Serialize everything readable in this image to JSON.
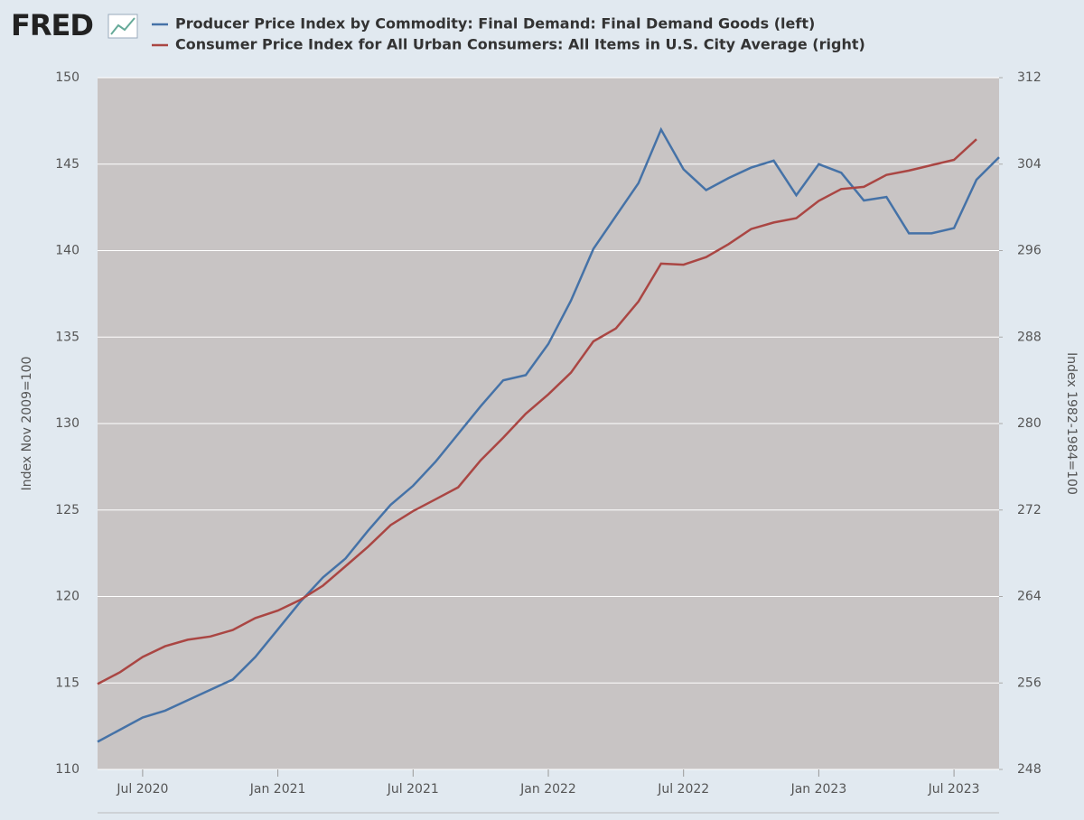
{
  "logo": "FRED",
  "chart_data": {
    "type": "line",
    "x": [
      "2020-05",
      "2020-06",
      "2020-07",
      "2020-08",
      "2020-09",
      "2020-10",
      "2020-11",
      "2020-12",
      "2021-01",
      "2021-02",
      "2021-03",
      "2021-04",
      "2021-05",
      "2021-06",
      "2021-07",
      "2021-08",
      "2021-09",
      "2021-10",
      "2021-11",
      "2021-12",
      "2022-01",
      "2022-02",
      "2022-03",
      "2022-04",
      "2022-05",
      "2022-06",
      "2022-07",
      "2022-08",
      "2022-09",
      "2022-10",
      "2022-11",
      "2022-12",
      "2023-01",
      "2023-02",
      "2023-03",
      "2023-04",
      "2023-05",
      "2023-06",
      "2023-07",
      "2023-08",
      "2023-09"
    ],
    "series": [
      {
        "name": "Producer Price Index by Commodity: Final Demand: Final Demand Goods (left)",
        "color": "#4572a7",
        "axis": "y",
        "values": [
          111.6,
          112.3,
          113.0,
          113.4,
          114.0,
          114.6,
          115.2,
          116.5,
          118.1,
          119.7,
          121.1,
          122.2,
          123.8,
          125.3,
          126.4,
          127.8,
          129.4,
          131.0,
          132.5,
          132.8,
          134.6,
          137.1,
          140.1,
          142.0,
          143.9,
          147.0,
          144.7,
          143.5,
          144.2,
          144.8,
          145.2,
          143.2,
          145.0,
          144.5,
          142.9,
          143.1,
          141.0,
          141.0,
          141.3,
          144.1,
          145.4
        ]
      },
      {
        "name": "Consumer Price Index for All Urban Consumers: All Items in U.S. City Average (right)",
        "color": "#aa4643",
        "axis": "y2",
        "values": [
          255.9,
          257.0,
          258.4,
          259.4,
          260.0,
          260.3,
          260.9,
          262.0,
          262.7,
          263.7,
          265.0,
          266.8,
          268.6,
          270.6,
          271.9,
          273.0,
          274.1,
          276.6,
          278.7,
          280.9,
          282.7,
          284.7,
          287.6,
          288.8,
          291.3,
          294.8,
          294.7,
          295.4,
          296.6,
          298.0,
          298.6,
          299.0,
          300.6,
          301.7,
          301.9,
          303.0,
          303.4,
          303.9,
          304.4,
          306.3,
          null
        ]
      }
    ],
    "xlim": [
      "2020-05",
      "2023-09"
    ],
    "xticks": [
      {
        "value": "2020-07",
        "label": "Jul 2020"
      },
      {
        "value": "2021-01",
        "label": "Jan 2021"
      },
      {
        "value": "2021-07",
        "label": "Jul 2021"
      },
      {
        "value": "2022-01",
        "label": "Jan 2022"
      },
      {
        "value": "2022-07",
        "label": "Jul 2022"
      },
      {
        "value": "2023-01",
        "label": "Jan 2023"
      },
      {
        "value": "2023-07",
        "label": "Jul 2023"
      }
    ],
    "ylim": [
      110,
      150
    ],
    "yticks": [
      110,
      115,
      120,
      125,
      130,
      135,
      140,
      145,
      150
    ],
    "y2lim": [
      248,
      312
    ],
    "y2ticks": [
      248,
      256,
      264,
      272,
      280,
      288,
      296,
      304,
      312
    ],
    "ylabel": "Index Nov 2009=100",
    "y2label": "Index 1982-1984=100",
    "grid": true,
    "plot_background": "#c8c4c4"
  }
}
